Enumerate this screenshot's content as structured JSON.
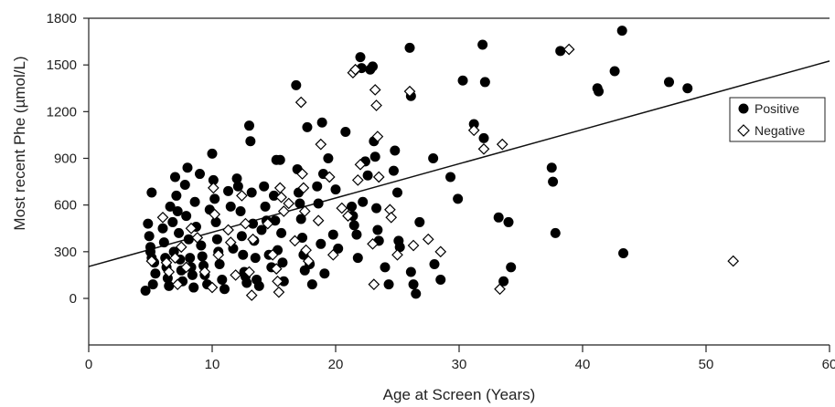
{
  "chart_data": {
    "type": "scatter",
    "title": "",
    "xlabel": "Age at Screen (Years)",
    "ylabel": "Most recent Phe (µmol/L)",
    "xlim": [
      0,
      60
    ],
    "ylim": [
      -300,
      1800
    ],
    "xticks": [
      0,
      10,
      20,
      30,
      40,
      50,
      60
    ],
    "yticks": [
      0,
      300,
      600,
      900,
      1200,
      1500,
      1800
    ],
    "grid": false,
    "legend_position": "right",
    "colors": {
      "Positive": "#000000",
      "Negative": "#000000",
      "trendline": "#000000"
    },
    "series": [
      {
        "name": "Positive",
        "marker": "filled-circle",
        "points": [
          [
            4.6,
            50
          ],
          [
            4.8,
            480
          ],
          [
            4.9,
            400
          ],
          [
            5.0,
            330
          ],
          [
            5.0,
            300
          ],
          [
            5.1,
            260
          ],
          [
            5.1,
            680
          ],
          [
            5.2,
            90
          ],
          [
            5.3,
            230
          ],
          [
            5.4,
            160
          ],
          [
            6.0,
            450
          ],
          [
            6.1,
            360
          ],
          [
            6.2,
            260
          ],
          [
            6.3,
            200
          ],
          [
            6.4,
            130
          ],
          [
            6.5,
            80
          ],
          [
            6.6,
            590
          ],
          [
            6.8,
            490
          ],
          [
            6.9,
            300
          ],
          [
            7.0,
            780
          ],
          [
            7.1,
            660
          ],
          [
            7.2,
            560
          ],
          [
            7.3,
            420
          ],
          [
            7.4,
            250
          ],
          [
            7.5,
            180
          ],
          [
            7.6,
            110
          ],
          [
            7.8,
            730
          ],
          [
            7.9,
            530
          ],
          [
            8.0,
            840
          ],
          [
            8.1,
            380
          ],
          [
            8.2,
            260
          ],
          [
            8.3,
            200
          ],
          [
            8.4,
            150
          ],
          [
            8.5,
            70
          ],
          [
            8.6,
            620
          ],
          [
            8.7,
            460
          ],
          [
            9.0,
            800
          ],
          [
            9.1,
            340
          ],
          [
            9.2,
            270
          ],
          [
            9.3,
            210
          ],
          [
            9.4,
            150
          ],
          [
            9.6,
            90
          ],
          [
            9.8,
            570
          ],
          [
            10.0,
            930
          ],
          [
            10.1,
            760
          ],
          [
            10.2,
            640
          ],
          [
            10.3,
            490
          ],
          [
            10.4,
            380
          ],
          [
            10.5,
            300
          ],
          [
            10.6,
            220
          ],
          [
            10.8,
            120
          ],
          [
            11.0,
            60
          ],
          [
            11.3,
            690
          ],
          [
            11.5,
            590
          ],
          [
            11.7,
            320
          ],
          [
            12.0,
            770
          ],
          [
            12.1,
            720
          ],
          [
            12.3,
            560
          ],
          [
            12.4,
            400
          ],
          [
            12.5,
            280
          ],
          [
            12.6,
            170
          ],
          [
            12.7,
            140
          ],
          [
            12.8,
            100
          ],
          [
            13.0,
            1110
          ],
          [
            13.1,
            1010
          ],
          [
            13.2,
            680
          ],
          [
            13.3,
            480
          ],
          [
            13.4,
            370
          ],
          [
            13.5,
            260
          ],
          [
            13.6,
            120
          ],
          [
            13.8,
            80
          ],
          [
            14.0,
            440
          ],
          [
            14.2,
            720
          ],
          [
            14.3,
            590
          ],
          [
            14.4,
            500
          ],
          [
            14.6,
            280
          ],
          [
            14.8,
            200
          ],
          [
            15.0,
            660
          ],
          [
            15.1,
            500
          ],
          [
            15.2,
            890
          ],
          [
            15.3,
            310
          ],
          [
            15.5,
            890
          ],
          [
            15.6,
            420
          ],
          [
            15.7,
            230
          ],
          [
            15.8,
            110
          ],
          [
            16.8,
            1370
          ],
          [
            16.9,
            830
          ],
          [
            17.0,
            680
          ],
          [
            17.1,
            610
          ],
          [
            17.2,
            510
          ],
          [
            17.3,
            390
          ],
          [
            17.4,
            280
          ],
          [
            17.5,
            180
          ],
          [
            17.7,
            1100
          ],
          [
            17.9,
            220
          ],
          [
            18.1,
            90
          ],
          [
            18.5,
            720
          ],
          [
            18.6,
            610
          ],
          [
            18.8,
            350
          ],
          [
            18.9,
            1130
          ],
          [
            19.0,
            800
          ],
          [
            19.1,
            160
          ],
          [
            19.4,
            900
          ],
          [
            19.8,
            410
          ],
          [
            20.0,
            700
          ],
          [
            20.2,
            320
          ],
          [
            20.8,
            1070
          ],
          [
            21.3,
            590
          ],
          [
            21.4,
            530
          ],
          [
            21.5,
            470
          ],
          [
            21.7,
            410
          ],
          [
            21.8,
            260
          ],
          [
            22.0,
            1550
          ],
          [
            22.1,
            1480
          ],
          [
            22.2,
            620
          ],
          [
            22.4,
            880
          ],
          [
            22.6,
            790
          ],
          [
            22.8,
            1470
          ],
          [
            23.0,
            1490
          ],
          [
            23.1,
            1010
          ],
          [
            23.2,
            910
          ],
          [
            23.3,
            580
          ],
          [
            23.4,
            440
          ],
          [
            23.5,
            370
          ],
          [
            24.0,
            200
          ],
          [
            24.3,
            90
          ],
          [
            24.7,
            820
          ],
          [
            24.8,
            950
          ],
          [
            25.0,
            680
          ],
          [
            25.1,
            370
          ],
          [
            25.2,
            330
          ],
          [
            26.0,
            1610
          ],
          [
            26.1,
            1300
          ],
          [
            26.1,
            170
          ],
          [
            26.3,
            90
          ],
          [
            26.5,
            30
          ],
          [
            26.8,
            490
          ],
          [
            27.9,
            900
          ],
          [
            28.0,
            220
          ],
          [
            28.5,
            120
          ],
          [
            29.3,
            780
          ],
          [
            29.9,
            640
          ],
          [
            30.3,
            1400
          ],
          [
            31.2,
            1120
          ],
          [
            31.9,
            1630
          ],
          [
            32.0,
            1030
          ],
          [
            32.1,
            1390
          ],
          [
            33.2,
            520
          ],
          [
            33.6,
            110
          ],
          [
            34.0,
            490
          ],
          [
            34.2,
            200
          ],
          [
            37.5,
            840
          ],
          [
            37.6,
            750
          ],
          [
            37.8,
            420
          ],
          [
            38.2,
            1590
          ],
          [
            41.2,
            1350
          ],
          [
            41.3,
            1330
          ],
          [
            42.6,
            1460
          ],
          [
            43.2,
            1720
          ],
          [
            43.3,
            290
          ],
          [
            47.0,
            1390
          ],
          [
            48.5,
            1350
          ]
        ]
      },
      {
        "name": "Negative",
        "marker": "open-diamond",
        "points": [
          [
            5.1,
            240
          ],
          [
            6.0,
            520
          ],
          [
            6.3,
            230
          ],
          [
            6.5,
            170
          ],
          [
            7.0,
            260
          ],
          [
            7.2,
            90
          ],
          [
            7.5,
            330
          ],
          [
            7.9,
            200
          ],
          [
            8.3,
            450
          ],
          [
            8.8,
            390
          ],
          [
            9.4,
            170
          ],
          [
            10.0,
            70
          ],
          [
            10.1,
            710
          ],
          [
            10.2,
            540
          ],
          [
            10.5,
            280
          ],
          [
            11.3,
            440
          ],
          [
            11.5,
            360
          ],
          [
            11.9,
            150
          ],
          [
            12.4,
            660
          ],
          [
            12.7,
            480
          ],
          [
            13.0,
            170
          ],
          [
            13.2,
            20
          ],
          [
            13.3,
            380
          ],
          [
            14.5,
            480
          ],
          [
            14.9,
            280
          ],
          [
            15.2,
            190
          ],
          [
            15.3,
            110
          ],
          [
            15.4,
            40
          ],
          [
            15.5,
            710
          ],
          [
            15.6,
            650
          ],
          [
            15.8,
            560
          ],
          [
            16.2,
            610
          ],
          [
            16.7,
            370
          ],
          [
            17.2,
            1260
          ],
          [
            17.3,
            800
          ],
          [
            17.4,
            710
          ],
          [
            17.5,
            560
          ],
          [
            17.6,
            310
          ],
          [
            17.8,
            240
          ],
          [
            18.6,
            500
          ],
          [
            18.8,
            990
          ],
          [
            19.5,
            780
          ],
          [
            19.8,
            280
          ],
          [
            20.5,
            580
          ],
          [
            21.0,
            530
          ],
          [
            21.4,
            1450
          ],
          [
            21.6,
            1470
          ],
          [
            21.8,
            760
          ],
          [
            22.0,
            860
          ],
          [
            23.0,
            350
          ],
          [
            23.1,
            90
          ],
          [
            23.2,
            1340
          ],
          [
            23.3,
            1240
          ],
          [
            23.4,
            1040
          ],
          [
            23.5,
            780
          ],
          [
            24.4,
            570
          ],
          [
            24.5,
            520
          ],
          [
            25.0,
            280
          ],
          [
            26.0,
            1330
          ],
          [
            26.3,
            340
          ],
          [
            27.5,
            380
          ],
          [
            28.5,
            300
          ],
          [
            31.2,
            1080
          ],
          [
            32.0,
            960
          ],
          [
            33.3,
            60
          ],
          [
            33.5,
            990
          ],
          [
            38.9,
            1600
          ],
          [
            52.2,
            240
          ]
        ]
      }
    ],
    "trendline": {
      "x": [
        0,
        60
      ],
      "y": [
        205,
        1525
      ]
    },
    "legend": [
      {
        "label": "Positive",
        "marker": "filled-circle"
      },
      {
        "label": "Negative",
        "marker": "open-diamond"
      }
    ]
  }
}
